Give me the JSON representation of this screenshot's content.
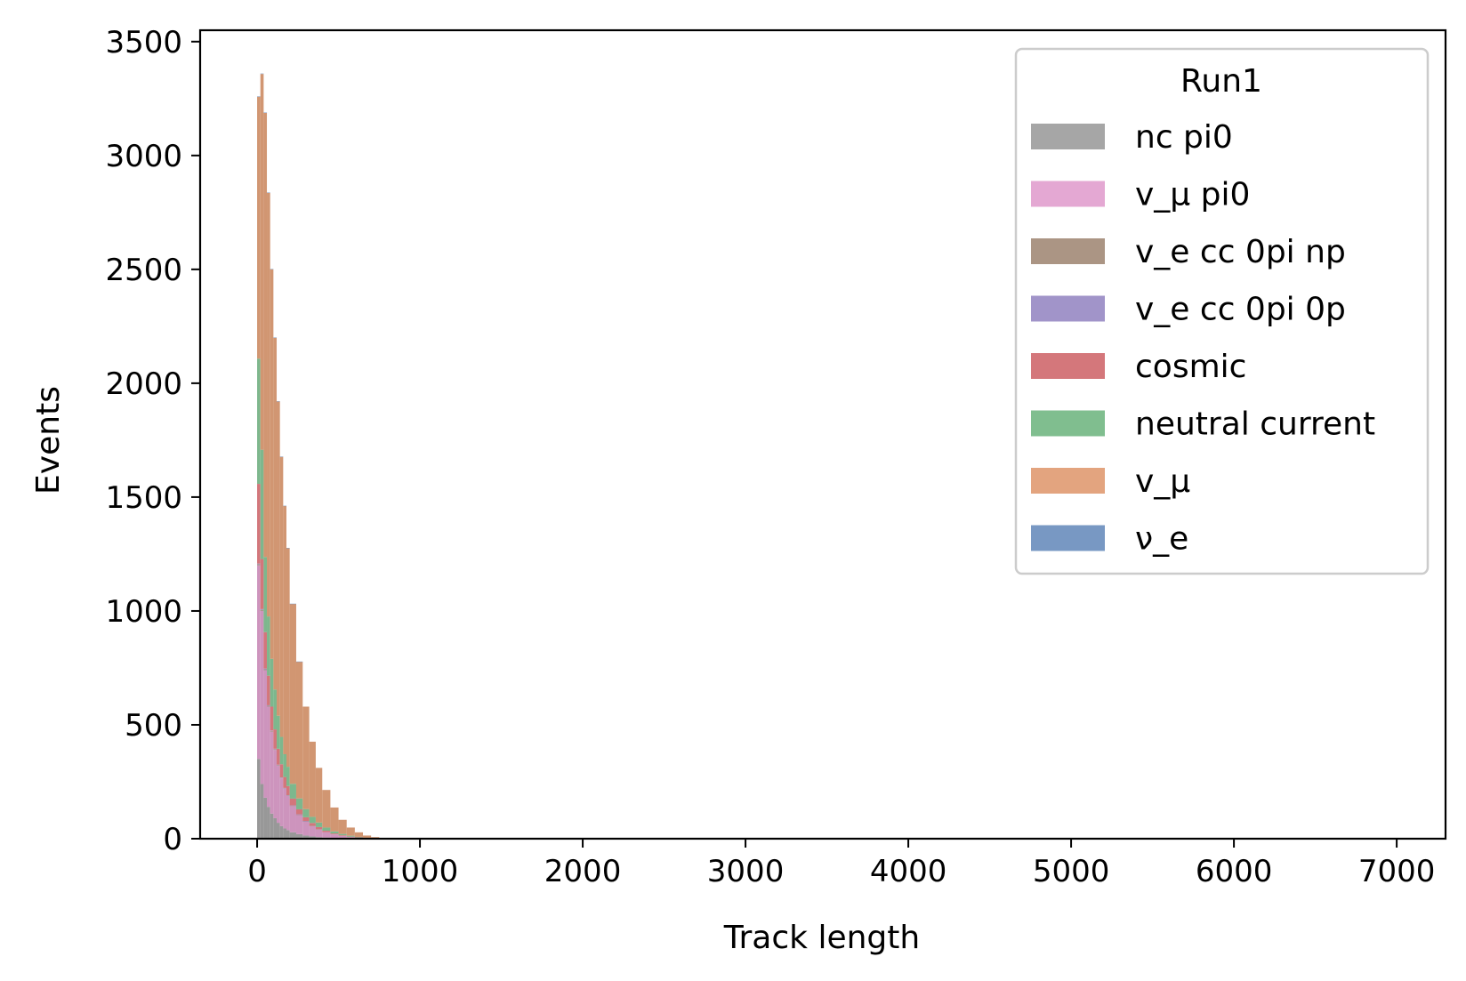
{
  "chart_data": {
    "type": "bar",
    "subtype": "stacked-histogram",
    "title": "",
    "xlabel": "Track length",
    "ylabel": "Events",
    "xlim": [
      -350,
      7300
    ],
    "ylim": [
      0,
      3550
    ],
    "x_ticks": [
      0,
      1000,
      2000,
      3000,
      4000,
      5000,
      6000,
      7000
    ],
    "y_ticks": [
      0,
      500,
      1000,
      1500,
      2000,
      2500,
      3000,
      3500
    ],
    "x_tick_labels": [
      "0",
      "1000",
      "2000",
      "3000",
      "4000",
      "5000",
      "6000",
      "7000"
    ],
    "y_tick_labels": [
      "0",
      "500",
      "1000",
      "1500",
      "2000",
      "2500",
      "3000",
      "3500"
    ],
    "grid": false,
    "legend": {
      "title": "Run1",
      "position": "top-right",
      "entries": [
        {
          "label": "nc pi0",
          "color": "#a6a6a6"
        },
        {
          "label": "v_μ pi0",
          "color": "#e4a8d3"
        },
        {
          "label": "v_e cc 0pi np",
          "color": "#ab9584"
        },
        {
          "label": "v_e cc 0pi 0p",
          "color": "#a194c9"
        },
        {
          "label": "cosmic",
          "color": "#d4777b"
        },
        {
          "label": "neutral current",
          "color": "#80be8f"
        },
        {
          "label": "v_μ",
          "color": "#e3a47f"
        },
        {
          "label": "ν_e",
          "color": "#7898c3"
        }
      ]
    },
    "bin_edges": [
      0,
      20,
      40,
      60,
      80,
      100,
      120,
      140,
      160,
      180,
      200,
      240,
      280,
      320,
      360,
      400,
      450,
      500,
      550,
      600,
      650,
      700,
      750,
      800
    ],
    "series": [
      {
        "name": "nc pi0",
        "color": "#8f8f8f",
        "values": [
          350,
          240,
          180,
          140,
          110,
          90,
          70,
          55,
          45,
          38,
          28,
          20,
          14,
          10,
          7,
          5,
          3,
          2,
          1,
          1,
          0,
          0,
          0
        ]
      },
      {
        "name": "v_μ pi0",
        "color": "#c98bb7",
        "values": [
          850,
          760,
          560,
          440,
          360,
          300,
          250,
          210,
          175,
          150,
          115,
          85,
          62,
          46,
          34,
          24,
          16,
          10,
          6,
          4,
          2,
          1,
          0
        ]
      },
      {
        "name": "v_e cc 0pi np",
        "color": "#a08878",
        "values": [
          5,
          5,
          4,
          4,
          3,
          3,
          3,
          2,
          2,
          2,
          2,
          1,
          1,
          1,
          1,
          0,
          0,
          0,
          0,
          0,
          0,
          0,
          0
        ]
      },
      {
        "name": "v_e cc 0pi 0p",
        "color": "#9a8cc4",
        "values": [
          3,
          3,
          3,
          2,
          2,
          2,
          2,
          2,
          1,
          1,
          1,
          1,
          1,
          0,
          0,
          0,
          0,
          0,
          0,
          0,
          0,
          0,
          0
        ]
      },
      {
        "name": "cosmic",
        "color": "#cf6a70",
        "values": [
          350,
          220,
          160,
          130,
          105,
          85,
          70,
          58,
          48,
          40,
          30,
          22,
          16,
          12,
          9,
          6,
          4,
          3,
          2,
          1,
          1,
          0,
          0
        ]
      },
      {
        "name": "neutral current",
        "color": "#72b183",
        "values": [
          550,
          480,
          330,
          260,
          210,
          175,
          145,
          120,
          100,
          85,
          65,
          48,
          36,
          27,
          20,
          14,
          9,
          6,
          4,
          2,
          1,
          1,
          0
        ]
      },
      {
        "name": "v_μ",
        "color": "#cd8d66",
        "values": [
          1150,
          1650,
          1950,
          1860,
          1710,
          1545,
          1380,
          1230,
          1090,
          960,
          790,
          600,
          450,
          330,
          240,
          165,
          105,
          62,
          36,
          20,
          10,
          5,
          2
        ]
      },
      {
        "name": "ν_e",
        "color": "#7898c3",
        "values": [
          2,
          2,
          2,
          2,
          2,
          1,
          1,
          1,
          1,
          1,
          1,
          1,
          0,
          0,
          0,
          0,
          0,
          0,
          0,
          0,
          0,
          0,
          0
        ]
      }
    ]
  }
}
